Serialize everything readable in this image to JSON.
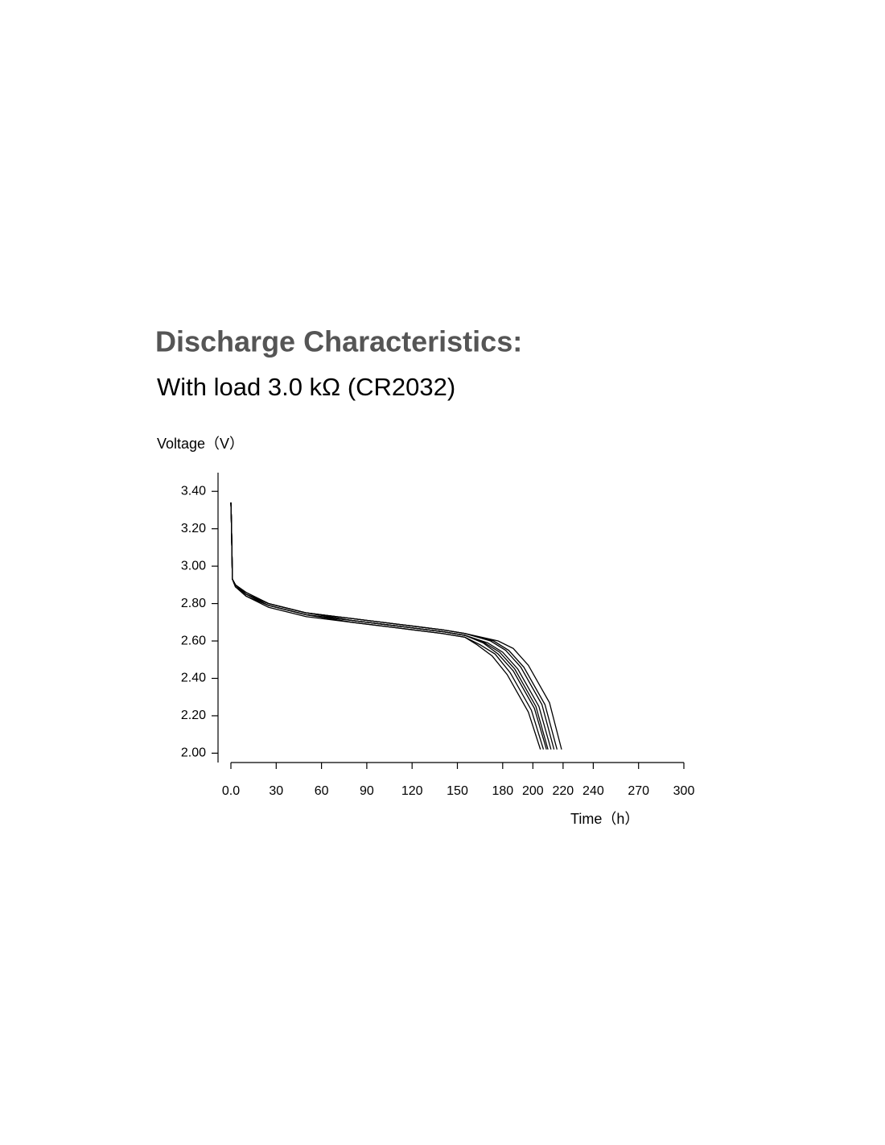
{
  "chart_data": {
    "type": "line",
    "title": "Discharge Characteristics:",
    "subtitle": "With load 3.0 kΩ (CR2032)",
    "y_label": "Voltage（V）",
    "x_label": "Time（h）",
    "xlim": [
      0,
      300
    ],
    "ylim": [
      1.95,
      3.5
    ],
    "xticks": [
      {
        "value": 0,
        "label": "0.0"
      },
      30,
      60,
      90,
      120,
      150,
      180,
      200,
      220,
      240,
      270,
      300
    ],
    "yticks": [
      {
        "value": 2.0,
        "label": "2.00"
      },
      {
        "value": 2.2,
        "label": "2.20"
      },
      {
        "value": 2.4,
        "label": "2.40"
      },
      {
        "value": 2.6,
        "label": "2.60"
      },
      {
        "value": 2.8,
        "label": "2.80"
      },
      {
        "value": 3.0,
        "label": "3.00"
      },
      {
        "value": 3.2,
        "label": "3.20"
      },
      {
        "value": 3.4,
        "label": "3.40"
      }
    ],
    "series": [
      {
        "color": "#000000",
        "x": [
          0,
          0.3,
          1,
          3,
          10,
          25,
          50,
          80,
          110,
          140,
          155,
          163,
          173,
          183,
          197,
          205
        ],
        "values": [
          3.34,
          3.25,
          2.93,
          2.89,
          2.84,
          2.78,
          2.73,
          2.7,
          2.67,
          2.64,
          2.62,
          2.58,
          2.52,
          2.42,
          2.22,
          2.02
        ]
      },
      {
        "color": "#000000",
        "x": [
          0,
          0.3,
          1,
          3,
          10,
          25,
          50,
          80,
          110,
          140,
          155,
          165,
          175,
          185,
          199,
          207
        ],
        "values": [
          3.34,
          3.25,
          2.93,
          2.89,
          2.85,
          2.79,
          2.74,
          2.7,
          2.67,
          2.64,
          2.62,
          2.58,
          2.53,
          2.43,
          2.23,
          2.02
        ]
      },
      {
        "color": "#000000",
        "x": [
          0,
          0.3,
          1,
          3,
          10,
          25,
          50,
          80,
          110,
          140,
          155,
          167,
          177,
          187,
          201,
          209
        ],
        "values": [
          3.34,
          3.25,
          2.93,
          2.9,
          2.85,
          2.79,
          2.74,
          2.71,
          2.68,
          2.65,
          2.63,
          2.59,
          2.53,
          2.44,
          2.24,
          2.02
        ]
      },
      {
        "color": "#000000",
        "x": [
          0,
          0.3,
          1,
          3,
          10,
          25,
          50,
          80,
          110,
          140,
          155,
          168,
          178,
          188,
          202,
          210
        ],
        "values": [
          3.34,
          3.25,
          2.93,
          2.9,
          2.85,
          2.8,
          2.75,
          2.71,
          2.68,
          2.65,
          2.63,
          2.59,
          2.54,
          2.45,
          2.25,
          2.02
        ]
      },
      {
        "color": "#000000",
        "x": [
          0,
          0.3,
          1,
          3,
          10,
          25,
          50,
          80,
          110,
          140,
          155,
          170,
          180,
          190,
          204,
          212
        ],
        "values": [
          3.34,
          3.25,
          2.93,
          2.89,
          2.84,
          2.79,
          2.74,
          2.71,
          2.68,
          2.65,
          2.63,
          2.59,
          2.54,
          2.45,
          2.25,
          2.02
        ]
      },
      {
        "color": "#000000",
        "x": [
          0,
          0.3,
          1,
          3,
          10,
          25,
          50,
          80,
          110,
          140,
          155,
          172,
          182,
          192,
          206,
          214
        ],
        "values": [
          3.34,
          3.25,
          2.93,
          2.9,
          2.86,
          2.8,
          2.75,
          2.72,
          2.69,
          2.66,
          2.64,
          2.6,
          2.55,
          2.46,
          2.26,
          2.02
        ]
      },
      {
        "color": "#000000",
        "x": [
          0,
          0.3,
          1,
          3,
          10,
          25,
          50,
          80,
          110,
          140,
          155,
          174,
          184,
          194,
          208,
          216
        ],
        "values": [
          3.34,
          3.25,
          2.93,
          2.9,
          2.85,
          2.8,
          2.75,
          2.72,
          2.69,
          2.66,
          2.64,
          2.6,
          2.55,
          2.46,
          2.26,
          2.02
        ]
      },
      {
        "color": "#000000",
        "x": [
          0,
          0.3,
          1,
          3,
          10,
          25,
          50,
          80,
          110,
          140,
          155,
          177,
          187,
          197,
          211,
          219
        ],
        "values": [
          3.34,
          3.25,
          2.93,
          2.9,
          2.86,
          2.8,
          2.75,
          2.72,
          2.69,
          2.66,
          2.64,
          2.6,
          2.56,
          2.47,
          2.27,
          2.02
        ]
      }
    ]
  }
}
